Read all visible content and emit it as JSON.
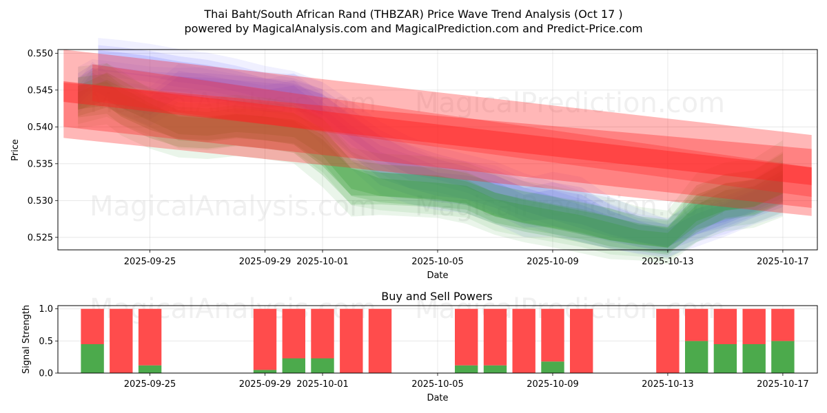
{
  "title_line1": "Thai Baht/South African Rand (THBZAR) Price Wave Trend Analysis (Oct 17 )",
  "title_line2": "powered by MagicalAnalysis.com and MagicalPrediction.com and Predict-Price.com",
  "watermarks": [
    "MagicalAnalysis.com",
    "MagicalPrediction.com"
  ],
  "chart_data": [
    {
      "type": "area",
      "title": "Thai Baht/South African Rand (THBZAR) Price Wave Trend Analysis (Oct 17 )",
      "xlabel": "Date",
      "ylabel": "Price",
      "xlim": [
        -3.2,
        23.2
      ],
      "ylim": [
        0.5233,
        0.5505
      ],
      "x_ticks": [
        {
          "value": 0,
          "label": "2025-09-25"
        },
        {
          "value": 4,
          "label": "2025-09-29"
        },
        {
          "value": 6,
          "label": "2025-10-01"
        },
        {
          "value": 10,
          "label": "2025-10-05"
        },
        {
          "value": 14,
          "label": "2025-10-09"
        },
        {
          "value": 18,
          "label": "2025-10-13"
        },
        {
          "value": 22,
          "label": "2025-10-17"
        }
      ],
      "y_ticks": [
        0.525,
        0.53,
        0.535,
        0.54,
        0.545,
        0.55
      ],
      "grid": true,
      "colors": {
        "blue": "#6a6aff",
        "green": "#2e9a2e",
        "red": "#ff2020"
      },
      "blue_bands": [
        {
          "x": [
            -2.5,
            -2,
            -1,
            0,
            1,
            2,
            4,
            5,
            6,
            7,
            8,
            9,
            10,
            11,
            12,
            13,
            14,
            15,
            16,
            17,
            18,
            19,
            20,
            21,
            22
          ],
          "center": [
            0.544,
            0.5462,
            0.544,
            0.5428,
            0.5455,
            0.5452,
            0.5438,
            0.5442,
            0.541,
            0.5378,
            0.5348,
            0.5335,
            0.5322,
            0.5318,
            0.5308,
            0.529,
            0.5295,
            0.5288,
            0.527,
            0.5258,
            0.5248,
            0.5275,
            0.5285,
            0.53,
            0.532
          ],
          "half_width": [
            0.001,
            0.0012,
            0.001,
            0.0012,
            0.0014,
            0.0012,
            0.0012,
            0.0014,
            0.0016,
            0.0016,
            0.0018,
            0.0018,
            0.0016,
            0.0016,
            0.0018,
            0.0018,
            0.002,
            0.002,
            0.0016,
            0.0014,
            0.0012,
            0.0014,
            0.0014,
            0.0014,
            0.0016
          ]
        },
        {
          "x": [
            -2.5,
            -2,
            -1,
            0,
            1,
            2,
            4,
            5,
            6,
            7,
            8,
            9,
            10,
            11,
            12,
            13,
            14,
            15,
            16,
            17,
            18,
            19,
            20,
            21,
            22
          ],
          "center": [
            0.5455,
            0.547,
            0.5465,
            0.546,
            0.5458,
            0.5455,
            0.5448,
            0.5445,
            0.543,
            0.54,
            0.5372,
            0.5352,
            0.5342,
            0.5332,
            0.5318,
            0.5302,
            0.529,
            0.5278,
            0.5265,
            0.5255,
            0.525,
            0.5268,
            0.5282,
            0.5298,
            0.5315
          ],
          "half_width": [
            0.0012,
            0.001,
            0.001,
            0.001,
            0.001,
            0.0012,
            0.0012,
            0.0012,
            0.0014,
            0.0016,
            0.0016,
            0.0016,
            0.0014,
            0.0014,
            0.0016,
            0.0016,
            0.0016,
            0.0016,
            0.0014,
            0.0012,
            0.0012,
            0.0014,
            0.0014,
            0.0014,
            0.0016
          ]
        },
        {
          "x": [
            -1.8,
            -1,
            0,
            1,
            2,
            3,
            4,
            5,
            6
          ],
          "center": [
            0.549,
            0.5487,
            0.5482,
            0.5475,
            0.547,
            0.5462,
            0.5452,
            0.5445,
            0.543
          ],
          "half_width": [
            0.0014,
            0.0014,
            0.0014,
            0.0014,
            0.0014,
            0.0014,
            0.0014,
            0.0014,
            0.0014
          ]
        }
      ],
      "green_bands": [
        {
          "x": [
            -2.5,
            -1.5,
            -1,
            0,
            1,
            2,
            3,
            4,
            5,
            6,
            7,
            8,
            9,
            10,
            11,
            12,
            13,
            14,
            15,
            16,
            17,
            18,
            19,
            20,
            21,
            22
          ],
          "center": [
            0.5435,
            0.545,
            0.544,
            0.542,
            0.5402,
            0.54,
            0.5405,
            0.5402,
            0.5398,
            0.5375,
            0.533,
            0.5318,
            0.5315,
            0.5312,
            0.5308,
            0.529,
            0.5282,
            0.5275,
            0.5268,
            0.5258,
            0.525,
            0.5246,
            0.528,
            0.53,
            0.5305,
            0.5325
          ],
          "half_width": [
            0.0012,
            0.0014,
            0.0014,
            0.0012,
            0.0012,
            0.0012,
            0.0012,
            0.0012,
            0.0012,
            0.0014,
            0.0014,
            0.0012,
            0.0012,
            0.0012,
            0.0012,
            0.0012,
            0.0012,
            0.0012,
            0.0012,
            0.0012,
            0.001,
            0.001,
            0.0014,
            0.0014,
            0.0014,
            0.0016
          ]
        },
        {
          "x": [
            -2.5,
            -1.5,
            -1,
            0,
            1,
            2,
            3,
            4,
            5,
            6,
            7,
            8,
            9,
            10,
            11,
            12,
            13,
            14,
            15,
            16,
            17,
            18,
            19,
            20,
            21,
            22
          ],
          "center": [
            0.544,
            0.5445,
            0.543,
            0.5412,
            0.54,
            0.5398,
            0.5402,
            0.5398,
            0.5392,
            0.5365,
            0.5325,
            0.5322,
            0.532,
            0.5318,
            0.531,
            0.5295,
            0.5285,
            0.5278,
            0.527,
            0.5262,
            0.5255,
            0.525,
            0.529,
            0.5305,
            0.531,
            0.533
          ],
          "half_width": [
            0.0016,
            0.0016,
            0.0016,
            0.0016,
            0.0016,
            0.0016,
            0.0016,
            0.0016,
            0.0016,
            0.0018,
            0.0018,
            0.0016,
            0.0016,
            0.0016,
            0.0016,
            0.0016,
            0.0016,
            0.0016,
            0.0016,
            0.0016,
            0.0014,
            0.0014,
            0.0018,
            0.0018,
            0.0018,
            0.002
          ]
        }
      ],
      "red_bands": [
        {
          "x": [
            -3.0,
            23.0
          ],
          "center_start": 0.5445,
          "center_end": 0.5334,
          "half_width_start": 0.006,
          "half_width_end": 0.0055,
          "opacity": 0.32
        },
        {
          "x": [
            -3.0,
            23.0
          ],
          "center_start": 0.543,
          "center_end": 0.533,
          "half_width_start": 0.003,
          "half_width_end": 0.004,
          "opacity": 0.35
        },
        {
          "x": [
            -3.0,
            23.0
          ],
          "center_start": 0.5448,
          "center_end": 0.5333,
          "half_width_start": 0.0014,
          "half_width_end": 0.0012,
          "opacity": 0.45
        },
        {
          "x": [
            -2.0,
            23.0
          ],
          "center_start": 0.546,
          "center_end": 0.5325,
          "half_width_start": 0.0025,
          "half_width_end": 0.002,
          "opacity": 0.3
        }
      ]
    },
    {
      "type": "bar",
      "title": "Buy and Sell Powers",
      "xlabel": "Date",
      "ylabel": "Signal Strength",
      "xlim": [
        -3.2,
        23.2
      ],
      "ylim": [
        0,
        1.05
      ],
      "x_ticks": [
        {
          "value": 0,
          "label": "2025-09-25"
        },
        {
          "value": 4,
          "label": "2025-09-29"
        },
        {
          "value": 6,
          "label": "2025-10-01"
        },
        {
          "value": 10,
          "label": "2025-10-05"
        },
        {
          "value": 14,
          "label": "2025-10-09"
        },
        {
          "value": 18,
          "label": "2025-10-13"
        },
        {
          "value": 22,
          "label": "2025-10-17"
        }
      ],
      "y_ticks": [
        0.0,
        0.5,
        1.0
      ],
      "grid": true,
      "categories": [
        "2025-09-23",
        "2025-09-24",
        "2025-09-25",
        "2025-09-29",
        "2025-09-30",
        "2025-10-01",
        "2025-10-02",
        "2025-10-03",
        "2025-10-06",
        "2025-10-07",
        "2025-10-08",
        "2025-10-09",
        "2025-10-10",
        "2025-10-13",
        "2025-10-14",
        "2025-10-15",
        "2025-10-16",
        "2025-10-17"
      ],
      "x": [
        -2,
        -1,
        0,
        4,
        5,
        6,
        7,
        8,
        11,
        12,
        13,
        14,
        15,
        18,
        19,
        20,
        21,
        22
      ],
      "series": [
        {
          "name": "Buy",
          "color": "#4caa4c",
          "values": [
            0.45,
            0.0,
            0.12,
            0.05,
            0.23,
            0.23,
            0.0,
            0.0,
            0.12,
            0.12,
            0.0,
            0.18,
            0.0,
            0.0,
            0.5,
            0.45,
            0.45,
            0.5
          ]
        },
        {
          "name": "Sell",
          "color": "#ff4c4c",
          "values": [
            0.55,
            1.0,
            0.88,
            0.95,
            0.77,
            0.77,
            1.0,
            1.0,
            0.88,
            0.88,
            1.0,
            0.82,
            1.0,
            1.0,
            0.5,
            0.55,
            0.55,
            0.5
          ]
        }
      ]
    }
  ]
}
